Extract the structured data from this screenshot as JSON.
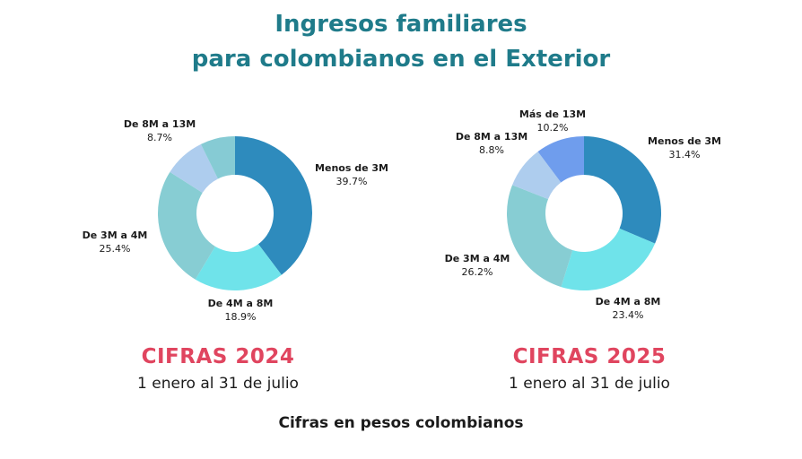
{
  "header": {
    "title_line1": "Ingresos familiares",
    "title_line2": "para colombianos en el Exterior"
  },
  "panels": [
    {
      "heading": "CIFRAS 2024",
      "period": "1 enero al 31 de julio"
    },
    {
      "heading": "CIFRAS 2025",
      "period": "1 enero al 31 de julio"
    }
  ],
  "footnote": "Cifras en pesos colombianos",
  "chart_data": [
    {
      "type": "pie",
      "subtype": "donut",
      "categories": [
        "Menos de 3M",
        "De 4M a 8M",
        "De 3M a 4M",
        "De 8M a 13M"
      ],
      "values": [
        39.7,
        18.9,
        25.4,
        8.7
      ],
      "value_labels": [
        "39.7%",
        "18.9%",
        "25.4%",
        "8.7%"
      ],
      "colors": [
        "#2e8bbd",
        "#6fe3ea",
        "#87cdd3",
        "#aecdee"
      ],
      "unlabeled_remainder": 7.3,
      "unlabeled_color": "#86cbd4"
    },
    {
      "type": "pie",
      "subtype": "donut",
      "categories": [
        "Menos de 3M",
        "De 4M a 8M",
        "De 3M a 4M",
        "De 8M a 13M",
        "Más de 13M"
      ],
      "values": [
        31.4,
        23.4,
        26.2,
        8.8,
        10.2
      ],
      "value_labels": [
        "31.4%",
        "23.4%",
        "26.2%",
        "8.8%",
        "10.2%"
      ],
      "colors": [
        "#2e8bbd",
        "#6fe3ea",
        "#87cdd3",
        "#aecdee",
        "#6f9ded"
      ]
    }
  ]
}
